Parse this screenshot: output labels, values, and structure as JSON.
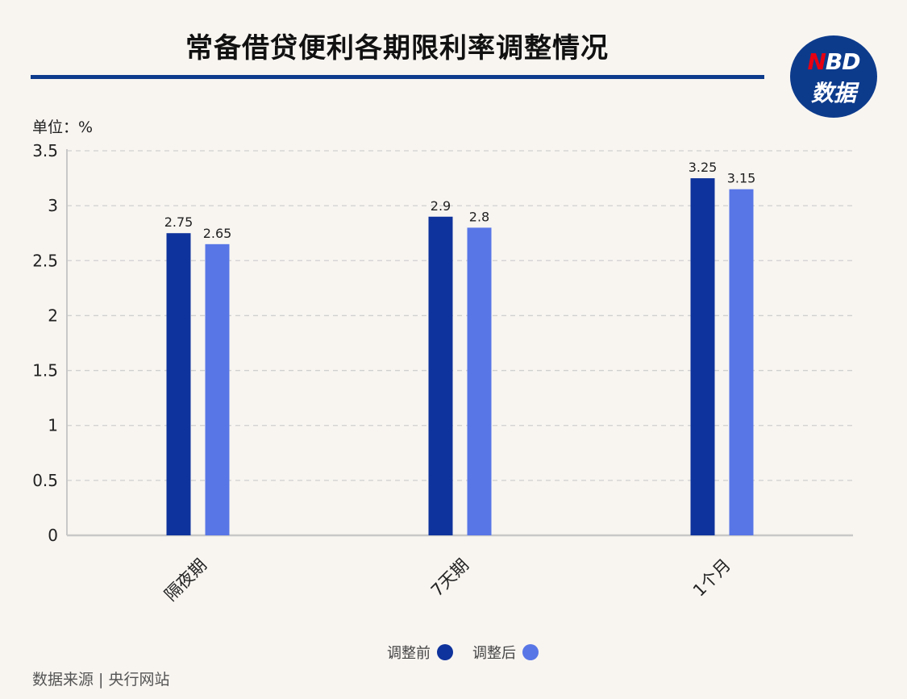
{
  "header": {
    "title": "常备借贷便利各期限利率调整情况",
    "logo_top": "NBD",
    "logo_bottom": "数据"
  },
  "unit_label": "单位：%",
  "source": "数据来源 | 央行网站",
  "colors": {
    "before": "#0f339c",
    "after": "#5876e6",
    "grid": "#d0d0d0",
    "axis": "#c8c8c8"
  },
  "chart_data": {
    "type": "bar",
    "categories": [
      "隔夜期",
      "7天期",
      "1个月"
    ],
    "series": [
      {
        "name": "调整前",
        "values": [
          2.75,
          2.9,
          3.25
        ]
      },
      {
        "name": "调整后",
        "values": [
          2.65,
          2.8,
          3.15
        ]
      }
    ],
    "ylim": [
      0,
      3.5
    ],
    "yticks": [
      "0",
      "0.5",
      "1",
      "1.5",
      "2",
      "2.5",
      "3",
      "3.5"
    ],
    "ylabel": "单位：%",
    "grid": true,
    "legend": "bottom-center"
  }
}
